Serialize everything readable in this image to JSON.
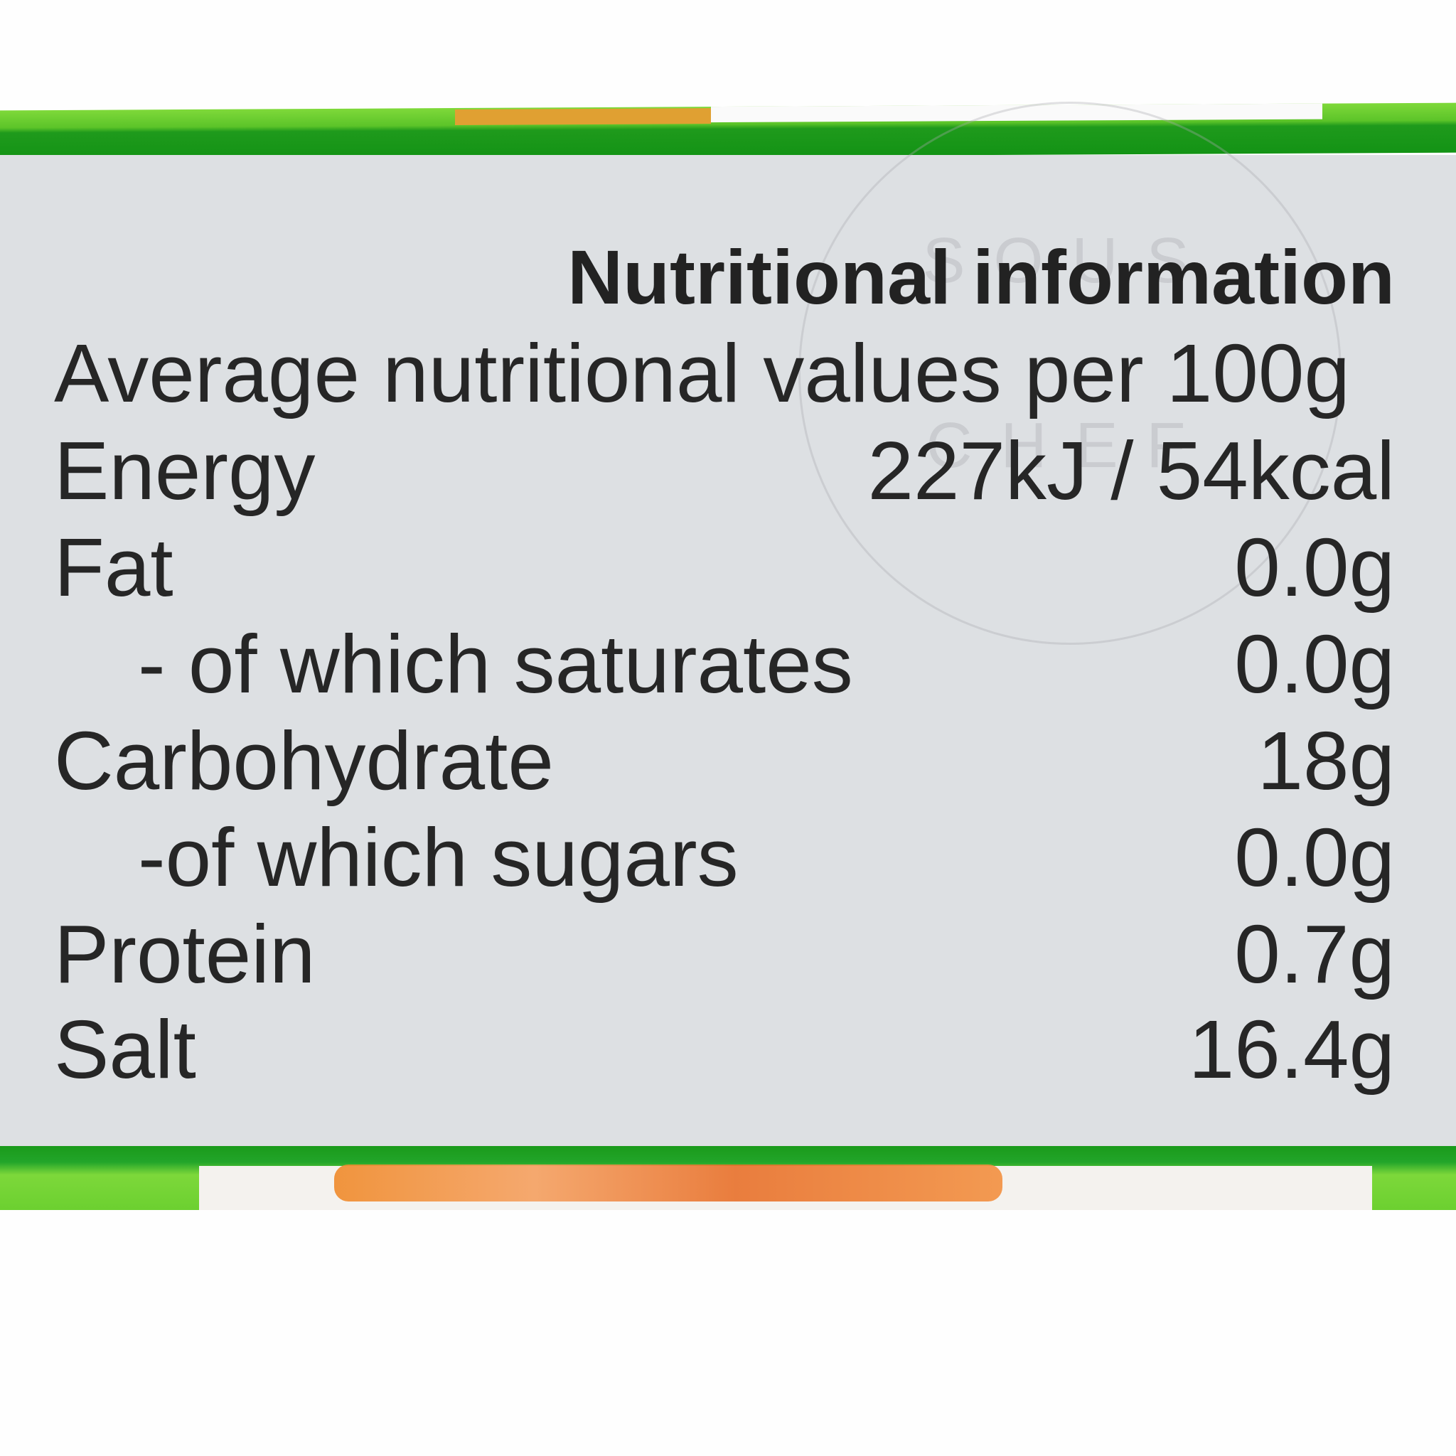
{
  "label": {
    "title": "Nutritional information",
    "subtitle": "Average nutritional values per 100g",
    "rows": [
      {
        "label": "Energy",
        "value": "227kJ / 54kcal",
        "indent": false
      },
      {
        "label": "Fat",
        "value": "0.0g",
        "indent": false
      },
      {
        "label": "- of which saturates",
        "value": "0.0g",
        "indent": true
      },
      {
        "label": "Carbohydrate",
        "value": "18g",
        "indent": false
      },
      {
        "label": "-of which sugars",
        "value": "0.0g",
        "indent": true
      },
      {
        "label": "Protein",
        "value": "0.7g",
        "indent": false
      },
      {
        "label": "Salt",
        "value": "16.4g",
        "indent": false
      }
    ]
  },
  "watermark": {
    "line1": "SOUS",
    "line2": "CHEF"
  },
  "colors": {
    "band_green": "#139315",
    "band_lime": "#7fd93a",
    "panel": "#dde0e3",
    "text": "#262626"
  }
}
